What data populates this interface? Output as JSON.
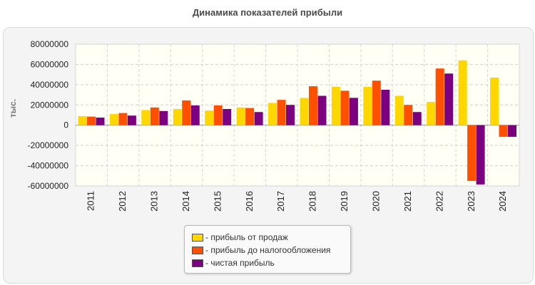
{
  "title": "Динамика показателей прибыли",
  "chart_data": {
    "type": "bar",
    "title": "Динамика показателей прибыли",
    "ylabel": "тыс.",
    "xlabel": "",
    "ylim": [
      -60000000,
      80000000
    ],
    "yticks": [
      80000000,
      60000000,
      40000000,
      20000000,
      0,
      -20000000,
      -40000000,
      -60000000
    ],
    "grid": true,
    "legend_position": "bottom",
    "categories": [
      "2011",
      "2012",
      "2013",
      "2014",
      "2015",
      "2016",
      "2017",
      "2018",
      "2019",
      "2020",
      "2021",
      "2022",
      "2023",
      "2024"
    ],
    "series": [
      {
        "name": "- прибыль от продаж",
        "color": "#ffd700",
        "values": [
          9000000,
          11000000,
          15000000,
          16000000,
          14500000,
          17500000,
          22000000,
          27000000,
          38000000,
          38000000,
          29000000,
          23000000,
          64000000,
          47000000
        ]
      },
      {
        "name": "- прибыль до налогообложения",
        "color": "#ff4f00",
        "values": [
          8500000,
          12000000,
          17500000,
          24500000,
          19500000,
          17000000,
          25000000,
          38500000,
          34000000,
          44000000,
          20000000,
          56000000,
          -55000000,
          -11500000
        ]
      },
      {
        "name": "- чистая прибыль",
        "color": "#7b0080",
        "values": [
          7500000,
          9500000,
          14000000,
          19500000,
          16000000,
          13000000,
          20000000,
          29000000,
          27000000,
          35000000,
          13000000,
          51000000,
          -58500000,
          -11500000
        ]
      }
    ]
  }
}
